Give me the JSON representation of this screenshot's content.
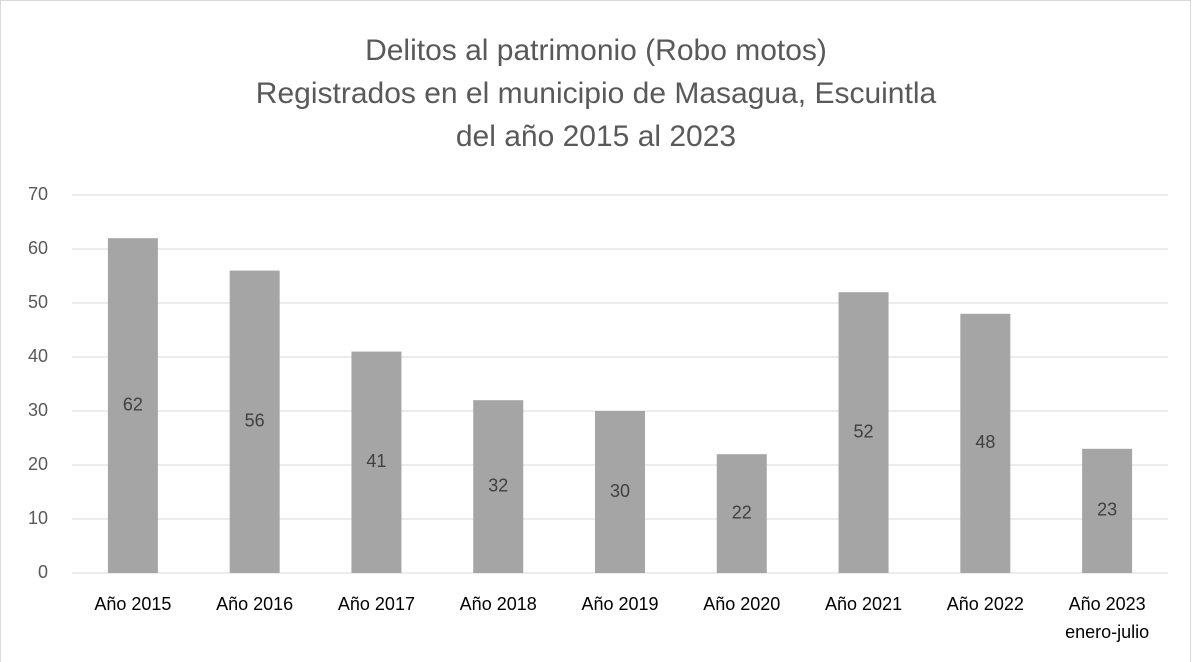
{
  "chart_data": {
    "type": "bar",
    "title": [
      "Delitos al patrimonio (Robo motos)",
      "Registrados en el municipio de Masagua, Escuintla",
      "del año 2015 al 2023"
    ],
    "categories": [
      [
        "Año 2015"
      ],
      [
        "Año 2016"
      ],
      [
        "Año 2017"
      ],
      [
        "Año 2018"
      ],
      [
        "Año 2019"
      ],
      [
        "Año 2020"
      ],
      [
        "Año 2021"
      ],
      [
        "Año 2022"
      ],
      [
        "Año 2023",
        "enero-julio"
      ]
    ],
    "values": [
      62,
      56,
      41,
      32,
      30,
      22,
      52,
      48,
      23
    ],
    "color": "#a5a5a5",
    "ylim": [
      0,
      70
    ],
    "yticks": [
      0,
      10,
      20,
      30,
      40,
      50,
      60,
      70
    ],
    "grid": true
  }
}
